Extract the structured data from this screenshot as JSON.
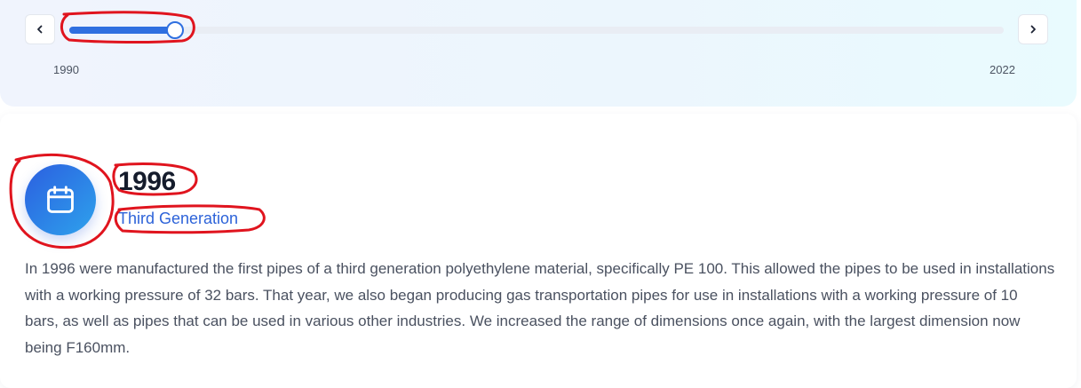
{
  "timeline": {
    "start_year": "1990",
    "end_year": "2022",
    "progress": 0.113,
    "prev_icon": "chevron-left-icon",
    "next_icon": "chevron-right-icon"
  },
  "entry": {
    "icon": "calendar-icon",
    "year": "1996",
    "generation": "Third Generation",
    "description": "In 1996 were manufactured the first pipes of a third generation polyethylene material, specifically PE 100. This allowed the pipes to be used in installations with a working pressure of 32 bars. That year, we also began producing gas transportation pipes for use in installations with a working pressure of 10 bars, as well as pipes that can be used in various other industries. We increased the range of dimensions once again, with the largest dimension now being F160mm."
  },
  "colors": {
    "accent": "#2f6fe0",
    "annotation": "#e0141e"
  }
}
